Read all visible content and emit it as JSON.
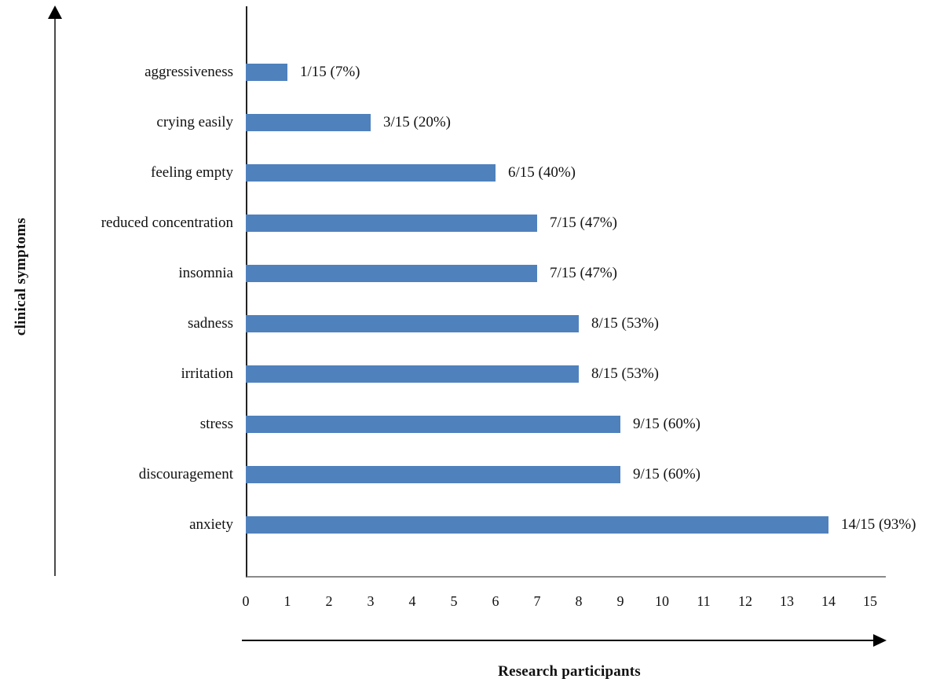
{
  "chart_data": {
    "type": "bar",
    "orientation": "horizontal",
    "title": "",
    "xlabel": "Research participants",
    "ylabel": "clinical symptoms",
    "categories": [
      "aggressiveness",
      "crying easily",
      "feeling empty",
      "reduced concentration",
      "insomnia",
      "sadness",
      "irritation",
      "stress",
      "discouragement",
      "anxiety"
    ],
    "values": [
      1,
      3,
      6,
      7,
      7,
      8,
      8,
      9,
      9,
      14
    ],
    "value_labels": [
      "1/15 (7%)",
      "3/15 (20%)",
      "6/15 (40%)",
      "7/15 (47%)",
      "7/15 (47%)",
      "8/15 (53%)",
      "8/15 (53%)",
      "9/15 (60%)",
      "9/15 (60%)",
      "14/15 (93%)"
    ],
    "denominator": 15,
    "xlim": [
      0,
      15
    ],
    "x_ticks": [
      "0",
      "1",
      "2",
      "3",
      "4",
      "5",
      "6",
      "7",
      "8",
      "9",
      "10",
      "11",
      "12",
      "13",
      "14",
      "15"
    ],
    "grid": false,
    "legend": "none",
    "bar_color": "#4f81bd",
    "axis_line_color": "#222222",
    "baseline_color": "#8a8a8a",
    "text_color": "#111111"
  }
}
